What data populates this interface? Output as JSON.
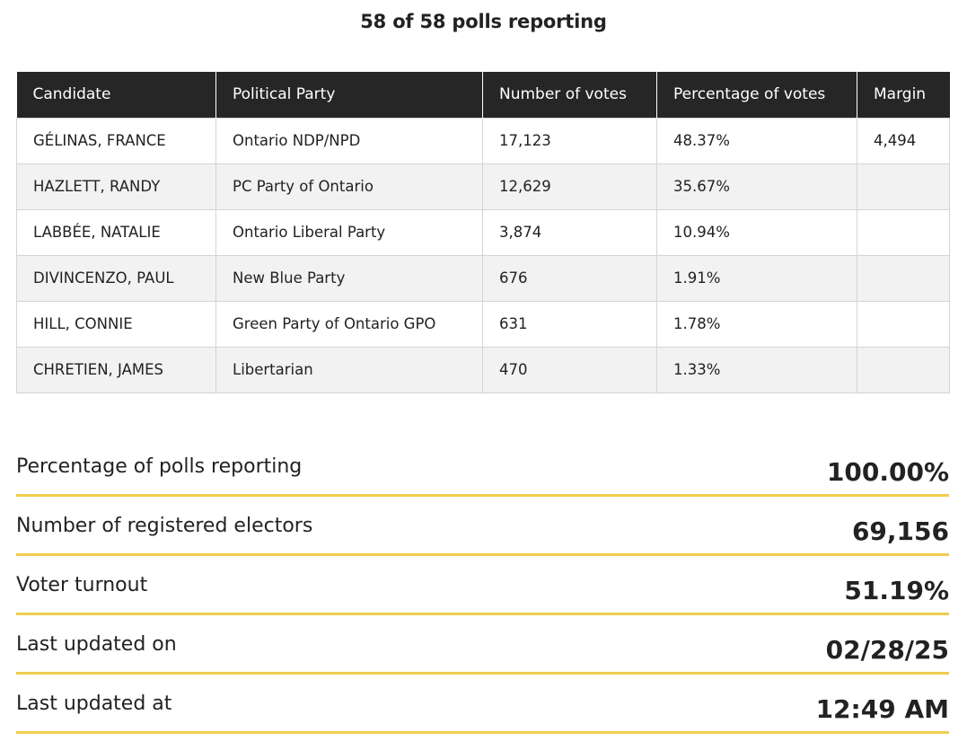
{
  "heading": "58 of 58 polls reporting",
  "table": {
    "columns": [
      "Candidate",
      "Political Party",
      "Number of votes",
      "Percentage of votes",
      "Margin"
    ],
    "rows": [
      {
        "candidate": "GÉLINAS, FRANCE",
        "party": "Ontario NDP/NPD",
        "votes": "17,123",
        "percentage": "48.37%",
        "margin": "4,494"
      },
      {
        "candidate": "HAZLETT, RANDY",
        "party": "PC Party of Ontario",
        "votes": "12,629",
        "percentage": "35.67%",
        "margin": ""
      },
      {
        "candidate": "LABBÉE, NATALIE",
        "party": "Ontario Liberal Party",
        "votes": "3,874",
        "percentage": "10.94%",
        "margin": ""
      },
      {
        "candidate": "DIVINCENZO, PAUL",
        "party": "New Blue Party",
        "votes": "676",
        "percentage": "1.91%",
        "margin": ""
      },
      {
        "candidate": "HILL, CONNIE",
        "party": "Green Party of Ontario GPO",
        "votes": "631",
        "percentage": "1.78%",
        "margin": ""
      },
      {
        "candidate": "CHRETIEN, JAMES",
        "party": "Libertarian",
        "votes": "470",
        "percentage": "1.33%",
        "margin": ""
      }
    ]
  },
  "stats": [
    {
      "label": "Percentage of polls reporting",
      "value": "100.00%"
    },
    {
      "label": "Number of registered electors",
      "value": "69,156"
    },
    {
      "label": "Voter turnout",
      "value": "51.19%"
    },
    {
      "label": "Last updated on",
      "value": "02/28/25"
    },
    {
      "label": "Last updated at",
      "value": "12:49 AM"
    }
  ],
  "colors": {
    "header_bg": "#262626",
    "stripe_bg": "#f2f2f2",
    "accent_rule": "#f0cd4f"
  }
}
